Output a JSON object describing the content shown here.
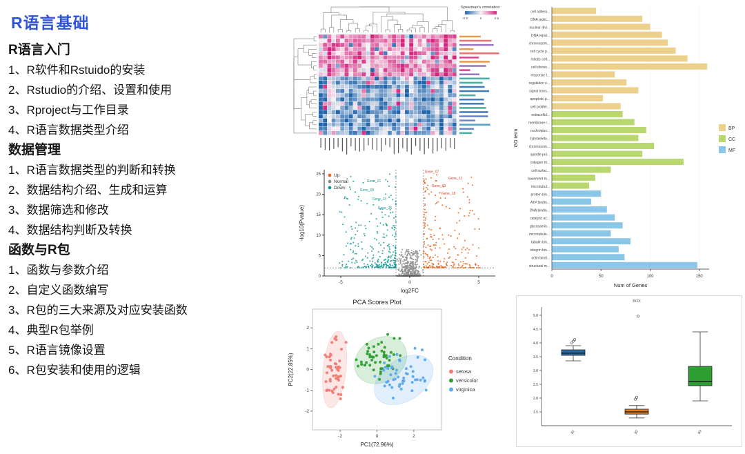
{
  "slide": {
    "title": "R语言基础"
  },
  "outline": {
    "sections": [
      {
        "heading": "R语言入门",
        "items": [
          "1、R软件和Rstuido的安装",
          "2、Rstudio的介绍、设置和使用",
          "3、Rproject与工作目录",
          "4、R语言数据类型介绍"
        ]
      },
      {
        "heading": "数据管理",
        "items": [
          "1、R语言数据类型的判断和转换",
          "2、数据结构介绍、生成和运算",
          "3、数据筛选和修改",
          "4、数据结构判断及转换"
        ]
      },
      {
        "heading": "函数与R包",
        "items": [
          "1、函数与参数介绍",
          "2、自定义函数编写",
          "3、R包的三大来源及对应安装函数",
          "4、典型R包举例",
          "5、R语言镜像设置",
          "6、R包安装和使用的逻辑"
        ]
      }
    ]
  },
  "chart_data": [
    {
      "id": "correlation-heatmap",
      "type": "heatmap",
      "legend_title": "Spearman's correlation",
      "legend_ticks": [
        "-0.5",
        "0",
        "0.5"
      ],
      "rows": 24,
      "cols": 32,
      "seed": 7,
      "row_blocks": [
        {
          "from": 0,
          "to": 9,
          "base": 0.55
        },
        {
          "from": 10,
          "to": 23,
          "base": -0.55
        }
      ],
      "colors": {
        "positive": "#d6247e",
        "mid": "#f7f4f6",
        "negative": "#2166ac"
      },
      "label_colors_top": [
        "#d6247e",
        "#e05c5c",
        "#8a5fb8",
        "#e08a2e"
      ],
      "label_colors_bottom": [
        "#2166ac",
        "#3a8fc0",
        "#2a9d8f",
        "#4f6fc2"
      ]
    },
    {
      "id": "volcano-plot",
      "type": "scatter",
      "xlabel": "log2FC",
      "ylabel": "-log10(Pvalue)",
      "xlim": [
        -6.2,
        6.2
      ],
      "ylim": [
        0,
        26
      ],
      "x_ticks": [
        -5,
        0,
        5
      ],
      "y_ticks": [
        0,
        5,
        10,
        15,
        20,
        25
      ],
      "thresholds": {
        "log2fc": [
          -1,
          1
        ],
        "pvalue_line": 2
      },
      "legend": [
        {
          "label": "Up",
          "color": "#e8641b"
        },
        {
          "label": "Normal",
          "color": "#8f8f8f"
        },
        {
          "label": "Down",
          "color": "#179a97"
        }
      ],
      "counts": {
        "up": 240,
        "normal": 430,
        "down": 290
      },
      "seed": 11,
      "gene_labels": [
        {
          "text": "Gene_07",
          "x": 1.6,
          "y": 25.2,
          "color": "#d43d2a"
        },
        {
          "text": "Gene_12",
          "x": 3.3,
          "y": 23.6,
          "color": "#d43d2a"
        },
        {
          "text": "Gene_03",
          "x": 2.1,
          "y": 21.8,
          "color": "#d43d2a"
        },
        {
          "text": "Gene_18",
          "x": 2.8,
          "y": 19.9,
          "color": "#d43d2a"
        },
        {
          "text": "Gene_21",
          "x": -2.6,
          "y": 23.0,
          "color": "#179a97"
        },
        {
          "text": "Gene_09",
          "x": -3.1,
          "y": 20.8,
          "color": "#179a97"
        },
        {
          "text": "Gene_14",
          "x": -2.2,
          "y": 18.6,
          "color": "#179a97"
        },
        {
          "text": "Gene_25",
          "x": -1.8,
          "y": 16.4,
          "color": "#179a97"
        }
      ]
    },
    {
      "id": "pca-scores",
      "type": "scatter",
      "title": "PCA Scores Plot",
      "xlabel": "PC1(72.96%)",
      "ylabel": "PC2(22.85%)",
      "xlim": [
        -3.5,
        3.5
      ],
      "ylim": [
        -2.9,
        2.9
      ],
      "x_ticks": [
        -2,
        0,
        2
      ],
      "y_ticks": [
        -2,
        -1,
        0,
        1,
        2
      ],
      "legend_title": "Condition",
      "seed": 23,
      "groups": [
        {
          "name": "setosa",
          "color": "#ef7b74",
          "n": 50,
          "center": [
            -2.3,
            0.0
          ],
          "sd": [
            0.28,
            0.75
          ],
          "ellipse": {
            "cx": -2.3,
            "cy": 0.0,
            "rx": 0.62,
            "ry": 1.85,
            "rot": 6
          }
        },
        {
          "name": "versicolor",
          "color": "#2f9e33",
          "n": 50,
          "center": [
            0.15,
            0.55
          ],
          "sd": [
            0.55,
            0.5
          ],
          "ellipse": {
            "cx": 0.2,
            "cy": 0.45,
            "rx": 1.5,
            "ry": 1.05,
            "rot": -32
          }
        },
        {
          "name": "virginica",
          "color": "#5aa8f0",
          "n": 50,
          "center": [
            1.35,
            -0.35
          ],
          "sd": [
            0.75,
            0.55
          ],
          "ellipse": {
            "cx": 1.45,
            "cy": -0.5,
            "rx": 1.75,
            "ry": 1.0,
            "rot": -33
          }
        }
      ]
    },
    {
      "id": "go-enrichment",
      "type": "bar",
      "orientation": "horizontal",
      "xlabel": "Num of Genes",
      "ylabel": "GO term",
      "xlim": [
        0,
        160
      ],
      "x_ticks": [
        0,
        50,
        100,
        150
      ],
      "legend": [
        {
          "label": "BP",
          "color": "#ecd08c"
        },
        {
          "label": "CC",
          "color": "#b9d76f"
        },
        {
          "label": "MF",
          "color": "#8ac6e8"
        }
      ],
      "bars": [
        {
          "label": "cell adhesi...",
          "value": 45,
          "group": "BP"
        },
        {
          "label": "DNA replic...",
          "value": 92,
          "group": "BP"
        },
        {
          "label": "nuclear divi...",
          "value": 100,
          "group": "BP"
        },
        {
          "label": "DNA repai...",
          "value": 112,
          "group": "BP"
        },
        {
          "label": "chromosom...",
          "value": 118,
          "group": "BP"
        },
        {
          "label": "cell cycle p...",
          "value": 126,
          "group": "BP"
        },
        {
          "label": "mitotic cell...",
          "value": 138,
          "group": "BP"
        },
        {
          "label": "cell divisio...",
          "value": 158,
          "group": "BP"
        },
        {
          "label": "response t...",
          "value": 64,
          "group": "BP"
        },
        {
          "label": "regulation o...",
          "value": 76,
          "group": "BP"
        },
        {
          "label": "signal trans...",
          "value": 88,
          "group": "BP"
        },
        {
          "label": "apoptotic p...",
          "value": 52,
          "group": "BP"
        },
        {
          "label": "cell prolifer...",
          "value": 70,
          "group": "BP"
        },
        {
          "label": "extracellul...",
          "value": 72,
          "group": "CC"
        },
        {
          "label": "membrane r...",
          "value": 84,
          "group": "CC"
        },
        {
          "label": "nucleoplas...",
          "value": 96,
          "group": "CC"
        },
        {
          "label": "cytoskeleto...",
          "value": 88,
          "group": "CC"
        },
        {
          "label": "chromosom...",
          "value": 104,
          "group": "CC"
        },
        {
          "label": "spindle pol...",
          "value": 92,
          "group": "CC"
        },
        {
          "label": "collagen tri...",
          "value": 134,
          "group": "CC"
        },
        {
          "label": "cell surfac...",
          "value": 60,
          "group": "CC"
        },
        {
          "label": "basement m...",
          "value": 44,
          "group": "CC"
        },
        {
          "label": "microtubul...",
          "value": 38,
          "group": "CC"
        },
        {
          "label": "protein bin...",
          "value": 50,
          "group": "MF"
        },
        {
          "label": "ATP bindin...",
          "value": 40,
          "group": "MF"
        },
        {
          "label": "DNA bindin...",
          "value": 56,
          "group": "MF"
        },
        {
          "label": "catalytic ac...",
          "value": 64,
          "group": "MF"
        },
        {
          "label": "glycosamin...",
          "value": 72,
          "group": "MF"
        },
        {
          "label": "microtubule...",
          "value": 60,
          "group": "MF"
        },
        {
          "label": "tubulin bin...",
          "value": 80,
          "group": "MF"
        },
        {
          "label": "integrin bin...",
          "value": 68,
          "group": "MF"
        },
        {
          "label": "actin bindi...",
          "value": 74,
          "group": "MF"
        },
        {
          "label": "structural m...",
          "value": 148,
          "group": "MF"
        }
      ]
    },
    {
      "id": "expression-boxplot",
      "type": "boxplot",
      "title": "BOX",
      "ylim": [
        1.0,
        5.3
      ],
      "y_ticks": [
        1.5,
        2.0,
        2.5,
        3.0,
        3.5,
        4.0,
        4.5,
        5.0
      ],
      "boxes": [
        {
          "label": "g1",
          "color": "#2b6ca3",
          "whisker_low": 3.35,
          "q1": 3.55,
          "median": 3.63,
          "q3": 3.75,
          "whisker_high": 3.9,
          "outliers": [
            4.0,
            4.06,
            4.12
          ]
        },
        {
          "label": "g2",
          "color": "#e07c24",
          "whisker_low": 1.28,
          "q1": 1.42,
          "median": 1.5,
          "q3": 1.6,
          "whisker_high": 1.73,
          "outliers": [
            1.96,
            2.03,
            4.97
          ]
        },
        {
          "label": "g3",
          "color": "#2f9e33",
          "whisker_low": 1.9,
          "q1": 2.45,
          "median": 2.6,
          "q3": 3.15,
          "whisker_high": 4.4,
          "outliers": []
        }
      ]
    }
  ]
}
